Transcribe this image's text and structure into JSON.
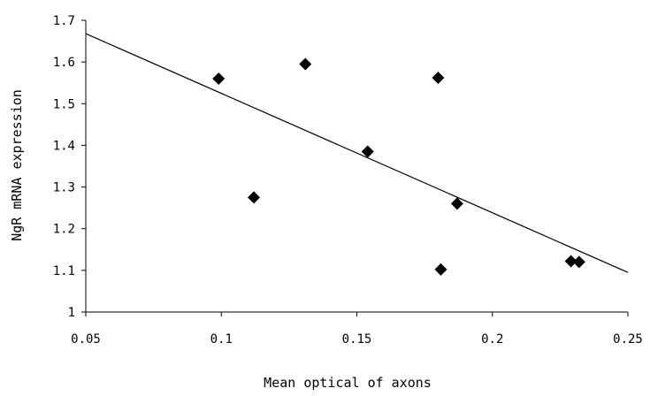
{
  "chart_data": {
    "type": "scatter",
    "title": "",
    "xlabel": "Mean optical of axons",
    "ylabel": "NgR mRNA expression",
    "xlim": [
      0.05,
      0.25
    ],
    "ylim": [
      1,
      1.7
    ],
    "x_ticks": [
      0.05,
      0.1,
      0.15,
      0.2,
      0.25
    ],
    "x_tick_labels": [
      "0.05",
      "0.1",
      "0.15",
      "0.2",
      "0.25"
    ],
    "y_ticks": [
      1,
      1.1,
      1.2,
      1.3,
      1.4,
      1.5,
      1.6,
      1.7
    ],
    "y_tick_labels": [
      "1",
      "1.1",
      "1.2",
      "1.3",
      "1.4",
      "1.5",
      "1.6",
      "1.7"
    ],
    "grid": false,
    "legend": "none",
    "marker": "diamond",
    "colors": {
      "marker": "#000000",
      "line": "#000000",
      "axis": "#000000"
    },
    "series": [
      {
        "points": [
          {
            "x": 0.099,
            "y": 1.56
          },
          {
            "x": 0.112,
            "y": 1.275
          },
          {
            "x": 0.131,
            "y": 1.595
          },
          {
            "x": 0.154,
            "y": 1.385
          },
          {
            "x": 0.18,
            "y": 1.562
          },
          {
            "x": 0.181,
            "y": 1.102
          },
          {
            "x": 0.187,
            "y": 1.26
          },
          {
            "x": 0.229,
            "y": 1.122
          },
          {
            "x": 0.232,
            "y": 1.12
          }
        ]
      }
    ],
    "trendline": {
      "type": "linear",
      "x": [
        0.05,
        0.25
      ],
      "y": [
        1.668,
        1.095
      ]
    }
  }
}
